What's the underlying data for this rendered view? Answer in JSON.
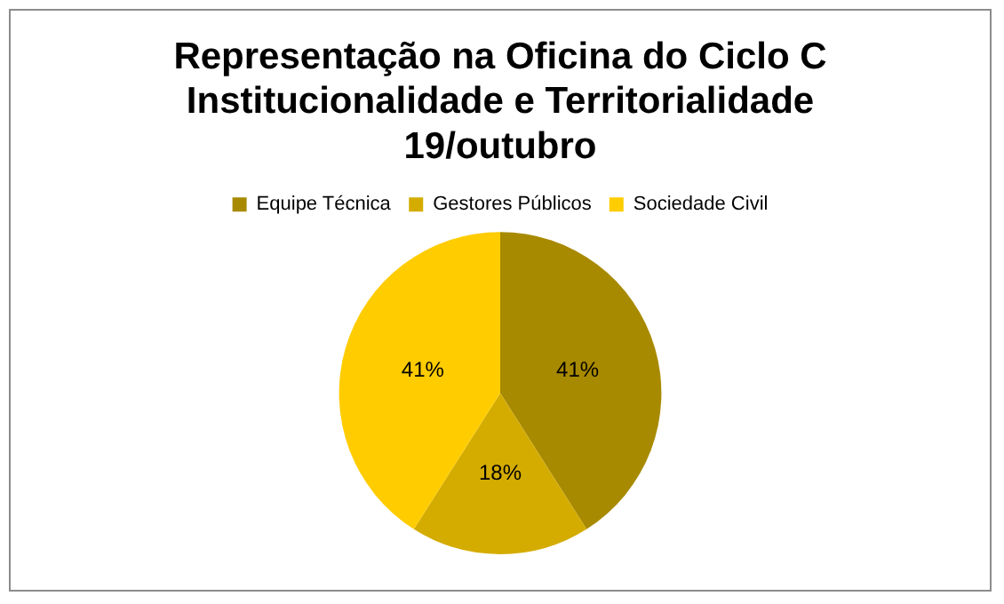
{
  "chart_data": {
    "type": "pie",
    "title": "Representação na Oficina do Ciclo C\nInstitucionalidade e Territorialidade\n19/outubro",
    "categories": [
      "Equipe Técnica",
      "Gestores Públicos",
      "Sociedade Civil"
    ],
    "values": [
      41,
      18,
      41
    ],
    "colors": [
      "#a88a00",
      "#d4ac00",
      "#ffcc00"
    ],
    "value_labels": [
      "41%",
      "18%",
      "41%"
    ],
    "legend": "top"
  }
}
